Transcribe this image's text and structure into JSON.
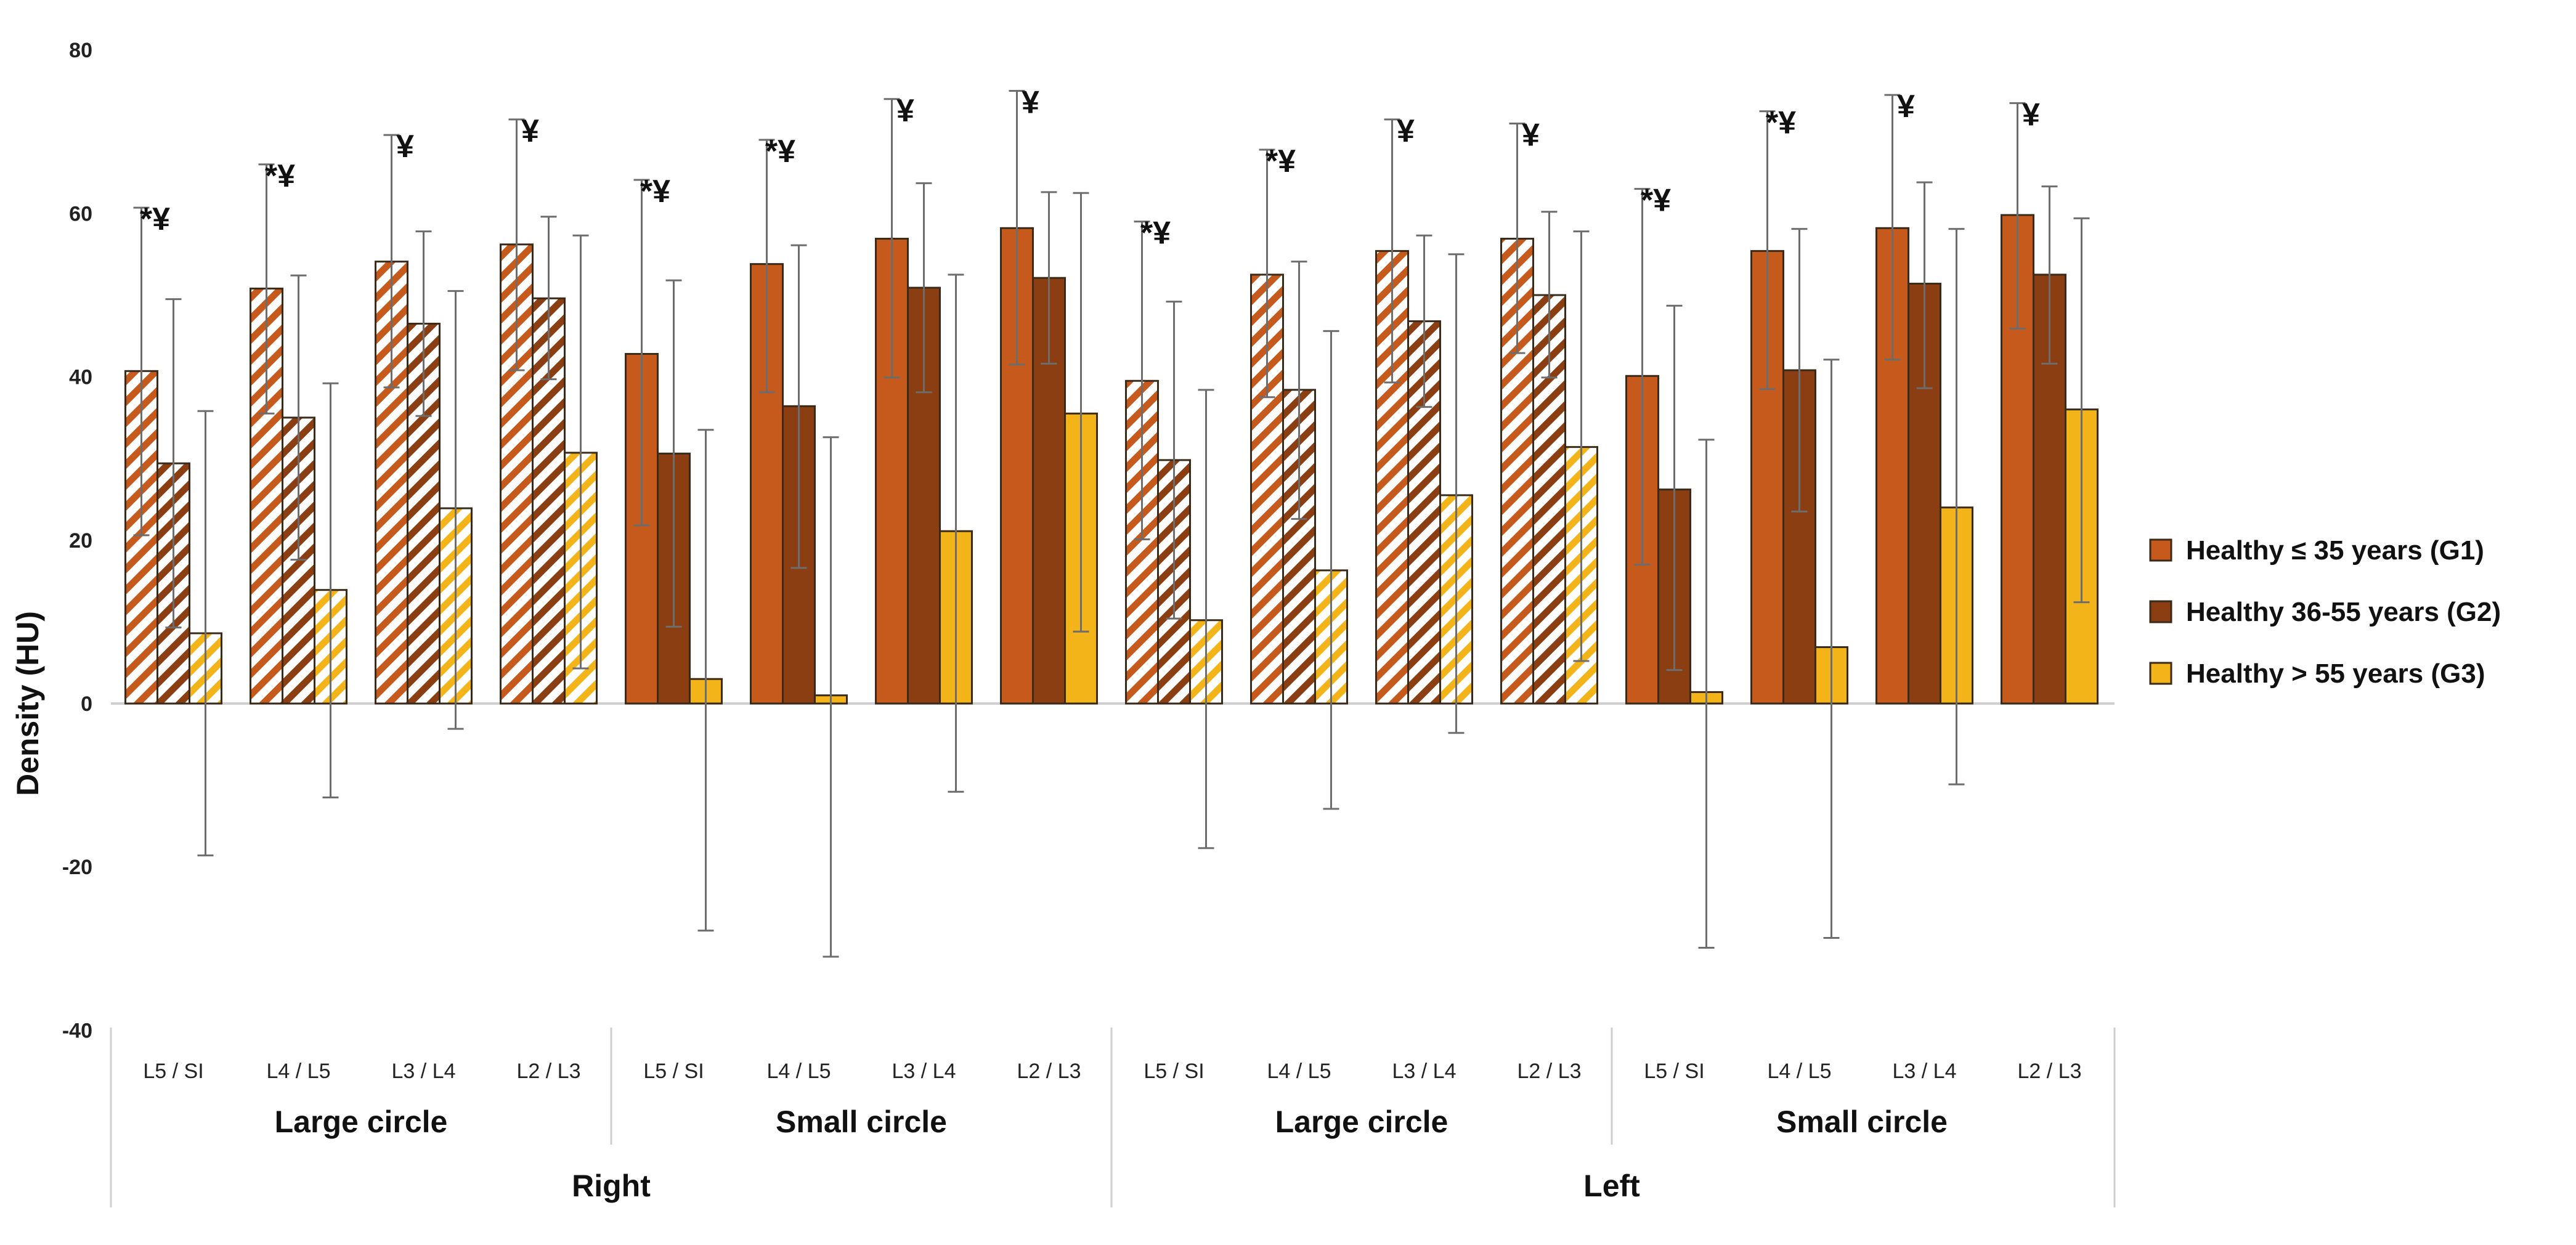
{
  "chart_data": {
    "type": "bar",
    "title": "",
    "xlabel": "",
    "ylabel": "Density (HU)",
    "ylim": [
      -40,
      80
    ],
    "yticks": [
      -40,
      -20,
      0,
      20,
      40,
      60,
      80
    ],
    "grid": false,
    "legend_position": "right",
    "categories": [
      "L5 / SI",
      "L4 / L5",
      "L3 / L4",
      "L2 / L3",
      "L5 / SI",
      "L4 / L5",
      "L3 / L4",
      "L2 / L3",
      "L5 / SI",
      "L4 / L5",
      "L3 / L4",
      "L2 / L3",
      "L5 / SI",
      "L4 / L5",
      "L3 / L4",
      "L2 / L3"
    ],
    "subgroups": [
      {
        "label": "Large circle",
        "pattern": "hatched"
      },
      {
        "label": "Small circle",
        "pattern": "solid"
      },
      {
        "label": "Large circle",
        "pattern": "hatched"
      },
      {
        "label": "Small circle",
        "pattern": "solid"
      }
    ],
    "sides": [
      {
        "label": "Right"
      },
      {
        "label": "Left"
      }
    ],
    "series": [
      {
        "name": "Healthy ≤ 35 years (G1)",
        "color": "#c55a1c",
        "values": [
          40.7,
          50.8,
          54.1,
          56.2,
          42.8,
          53.8,
          56.9,
          58.2,
          39.5,
          52.5,
          55.4,
          56.9,
          40.1,
          55.4,
          58.2,
          59.8
        ],
        "err_low": [
          20.6,
          35.5,
          38.7,
          40.8,
          21.8,
          38.1,
          39.9,
          41.5,
          20.1,
          37.5,
          39.3,
          42.9,
          17.0,
          38.5,
          42.1,
          45.9
        ],
        "err_high": [
          60.7,
          66.0,
          69.6,
          71.5,
          64.1,
          69.0,
          74.0,
          75.0,
          59.0,
          67.8,
          71.5,
          71.0,
          63.0,
          72.5,
          74.5,
          73.5
        ]
      },
      {
        "name": "Healthy 36-55 years (G2)",
        "color": "#8b3e12",
        "values": [
          29.4,
          35.0,
          46.5,
          49.6,
          30.6,
          36.4,
          50.9,
          52.1,
          29.8,
          38.4,
          46.8,
          50.0,
          26.2,
          40.8,
          51.4,
          52.5
        ],
        "err_low": [
          9.3,
          17.6,
          35.2,
          39.7,
          9.4,
          16.6,
          38.1,
          41.6,
          10.4,
          22.6,
          36.3,
          39.9,
          4.1,
          23.5,
          38.6,
          41.6
        ],
        "err_high": [
          49.5,
          52.4,
          57.8,
          59.6,
          51.8,
          56.1,
          63.7,
          62.6,
          49.2,
          54.1,
          57.3,
          60.2,
          48.7,
          58.1,
          63.8,
          63.3
        ]
      },
      {
        "name": "Healthy > 55 years (G3)",
        "color": "#f2b418",
        "values": [
          8.6,
          13.9,
          23.9,
          30.7,
          3.0,
          1.0,
          21.1,
          35.5,
          10.2,
          16.3,
          25.5,
          31.4,
          1.4,
          6.9,
          24.0,
          36.0
        ],
        "err_low": [
          -18.6,
          -11.5,
          -3.1,
          4.3,
          -27.8,
          -31.0,
          -10.8,
          8.8,
          -17.7,
          -12.9,
          -3.6,
          5.2,
          -29.9,
          -28.7,
          -9.9,
          12.4
        ],
        "err_high": [
          35.8,
          39.2,
          50.5,
          57.3,
          33.5,
          32.6,
          52.5,
          62.5,
          38.4,
          45.6,
          55.0,
          57.8,
          32.3,
          42.1,
          58.1,
          59.4
        ]
      }
    ],
    "annotations": [
      "*¥",
      "*¥",
      "¥",
      "¥",
      "*¥",
      "*¥",
      "¥",
      "¥",
      "*¥",
      "*¥",
      "¥",
      "¥",
      "*¥",
      "*¥",
      "¥",
      "¥"
    ]
  }
}
